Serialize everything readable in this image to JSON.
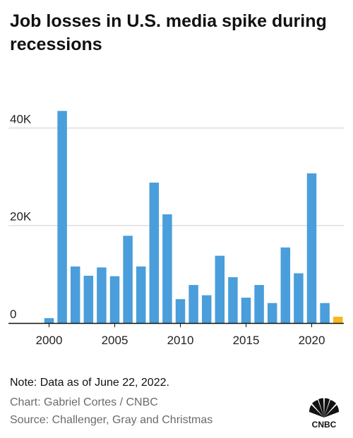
{
  "title": "Job losses in U.S. media spike during recessions",
  "note": "Note: Data as of June 22, 2022.",
  "credit": "Chart: Gabriel Cortes / CNBC",
  "source": "Source: Challenger, Gray and Christmas",
  "logo": {
    "text": "CNBC",
    "icon": "peacock-logo-icon"
  },
  "colors": {
    "bar": "#4a9edb",
    "highlight": "#f6b81c",
    "grid": "#d0d0d0",
    "axis": "#111111"
  },
  "chart_data": {
    "type": "bar",
    "title": "Job losses in U.S. media spike during recessions",
    "xlabel": "",
    "ylabel": "",
    "x": [
      2000,
      2001,
      2002,
      2003,
      2004,
      2005,
      2006,
      2007,
      2008,
      2009,
      2010,
      2011,
      2012,
      2013,
      2014,
      2015,
      2016,
      2017,
      2018,
      2019,
      2020,
      2021,
      2022
    ],
    "values": [
      1000,
      43500,
      11600,
      9700,
      11400,
      9600,
      17900,
      11600,
      28800,
      22300,
      4900,
      7800,
      5700,
      13800,
      9400,
      5200,
      7800,
      4100,
      15500,
      10200,
      30700,
      4100,
      1300
    ],
    "highlight_x": [
      2022
    ],
    "x_ticks": [
      2000,
      2005,
      2010,
      2015,
      2020
    ],
    "y_ticks": [
      0,
      20000,
      40000
    ],
    "y_tick_labels": [
      "0",
      "20K",
      "40K"
    ],
    "ylim": [
      0,
      46000
    ],
    "grid": true
  }
}
